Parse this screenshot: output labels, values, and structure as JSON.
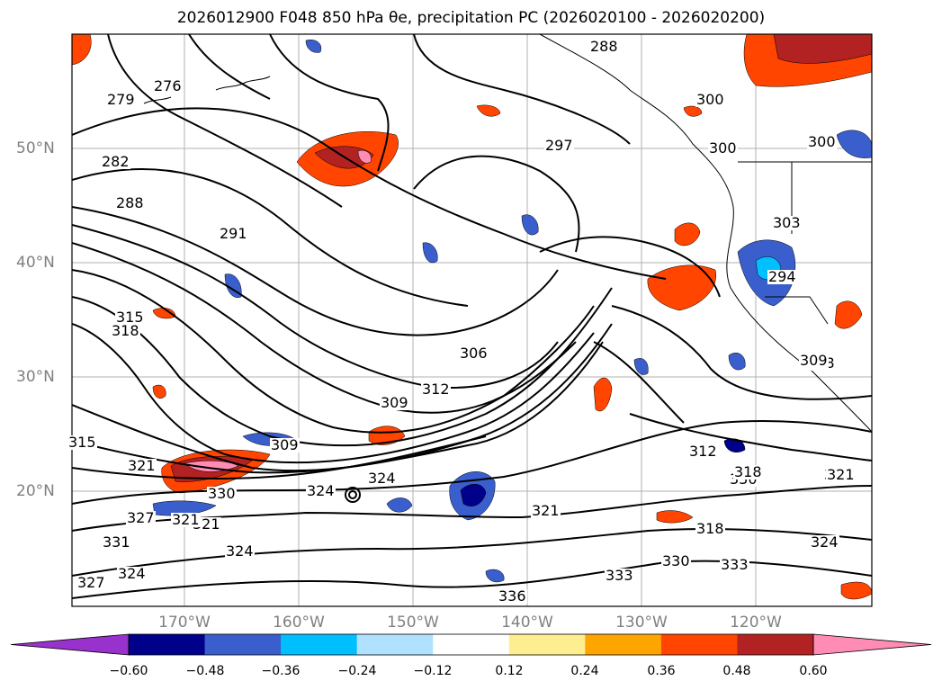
{
  "title": "2026012900 F048 850 hPa θe, precipitation PC (2026020100 - 2026020200)",
  "lat_labels": [
    "50°N",
    "40°N",
    "30°N",
    "20°N"
  ],
  "lon_labels": [
    "170°W",
    "160°W",
    "150°W",
    "140°W",
    "130°W",
    "120°W"
  ],
  "contour_labels": [
    "276",
    "279",
    "282",
    "288",
    "291",
    "288",
    "297",
    "300",
    "300",
    "300",
    "306",
    "309",
    "312",
    "309",
    "315",
    "315",
    "318",
    "321",
    "321",
    "324",
    "324",
    "327",
    "330",
    "321",
    "324",
    "318",
    "321",
    "330",
    "333",
    "336",
    "333",
    "330",
    "318",
    "324",
    "321",
    "327",
    "312",
    "318",
    "309",
    "303",
    "294",
    "321",
    "331",
    "324"
  ],
  "colorbar": {
    "ticks": [
      "−0.60",
      "−0.48",
      "−0.36",
      "−0.24",
      "−0.12",
      "0.12",
      "0.24",
      "0.36",
      "0.48",
      "0.60"
    ],
    "colors": [
      "#9932cc",
      "#00008b",
      "#3a5fcd",
      "#00bfff",
      "#b0e2ff",
      "#ffffff",
      "#fdee8f",
      "#ffa500",
      "#ff4500",
      "#b22222",
      "#ff8cb4"
    ]
  }
}
